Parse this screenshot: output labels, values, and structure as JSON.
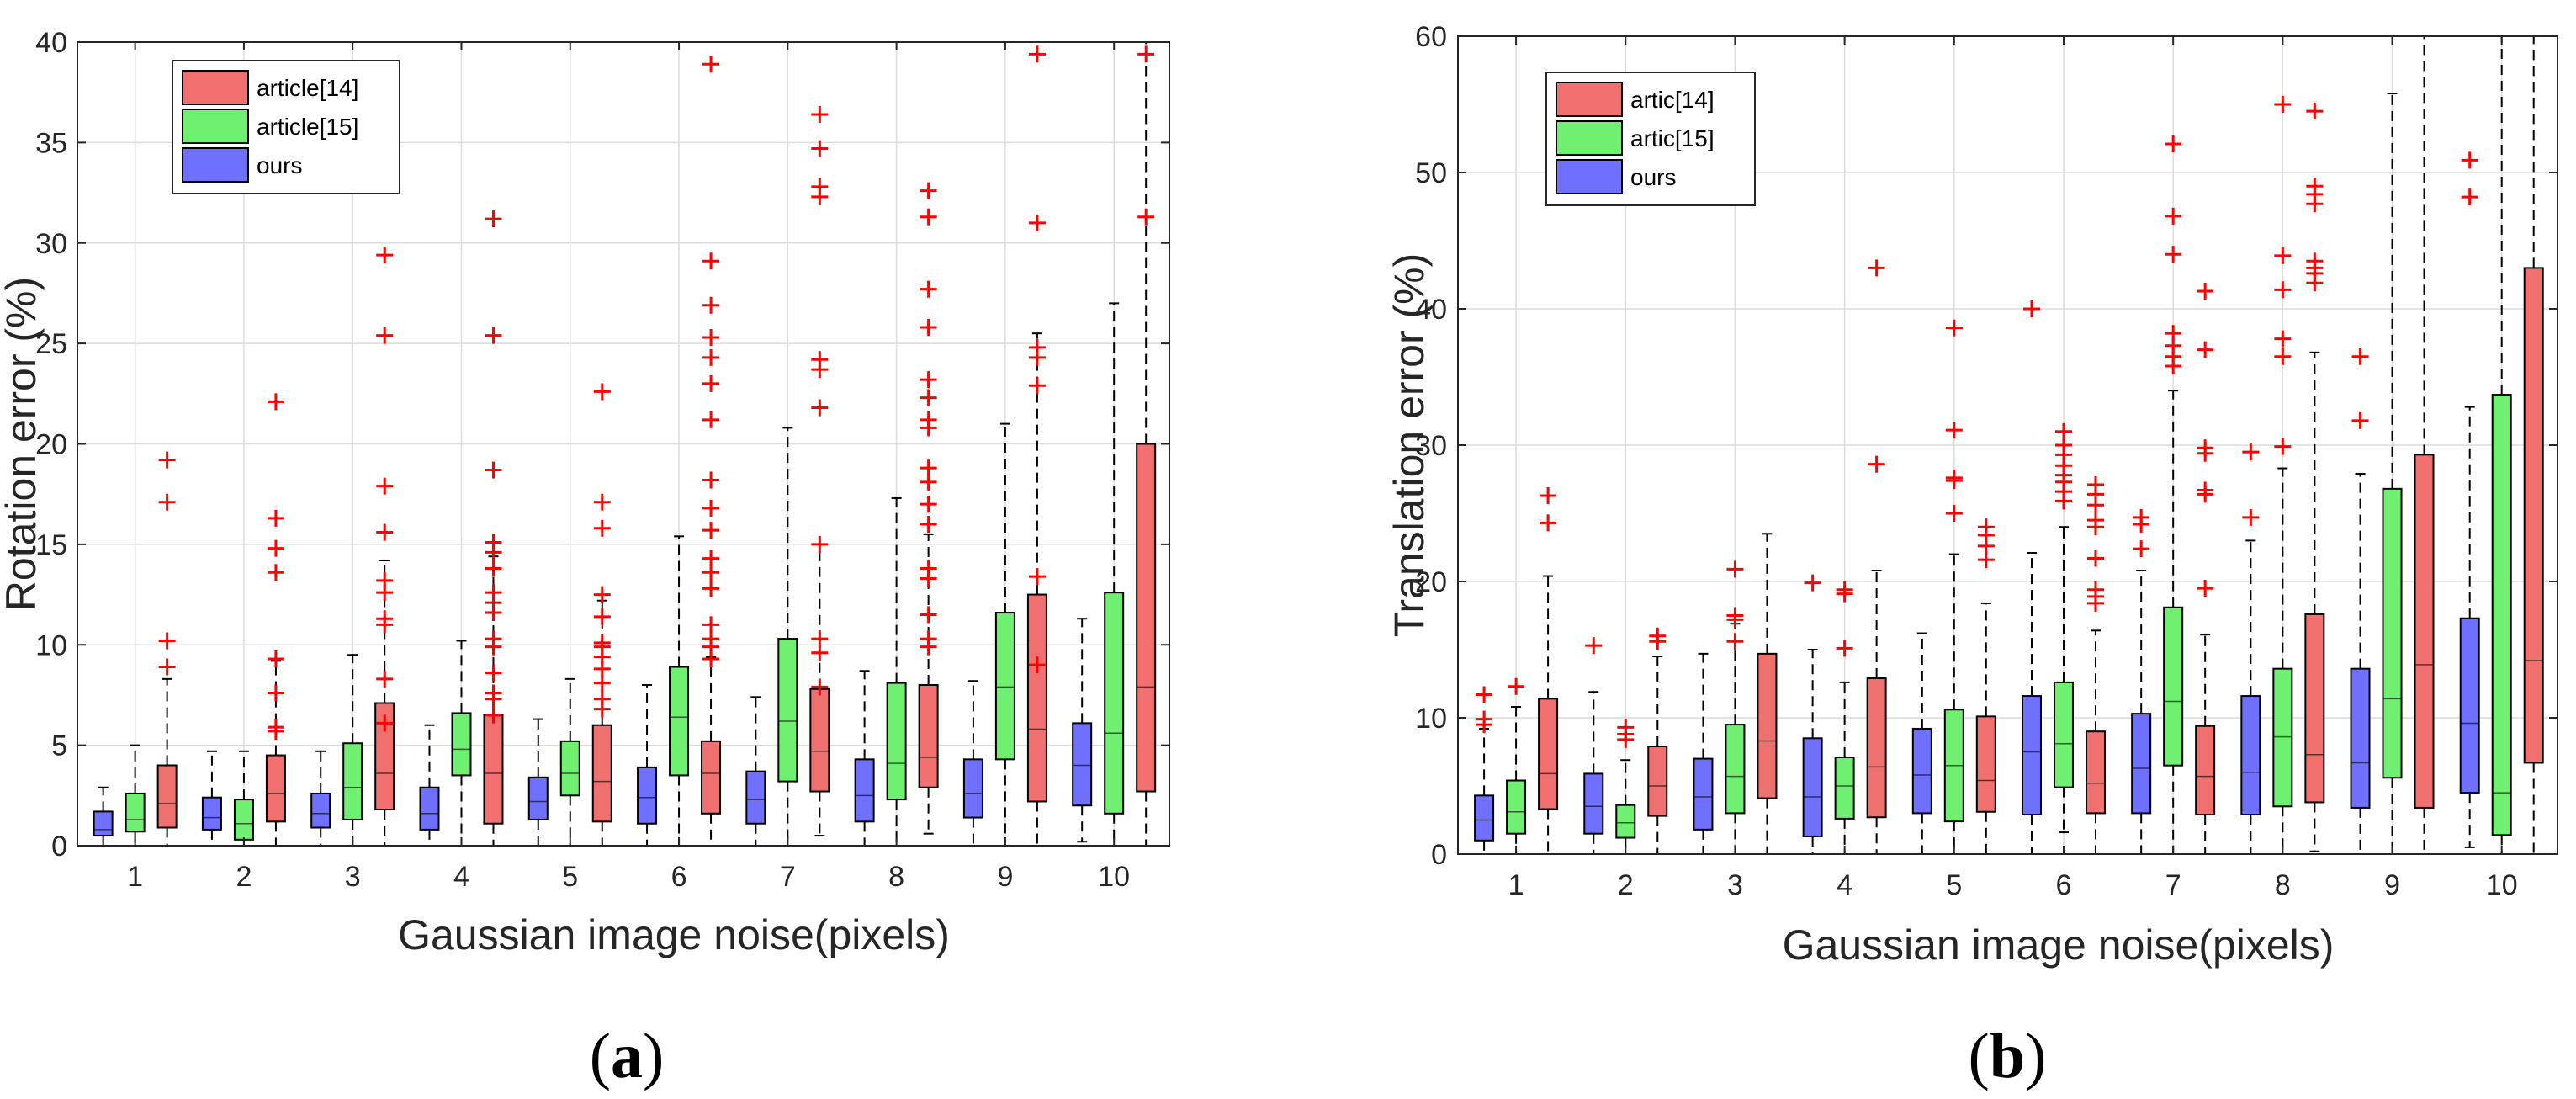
{
  "chart_data": [
    {
      "type": "box",
      "panel_label": "a",
      "xlabel": "Gaussian image noise(pixels)",
      "ylabel": "Rotation error (%)",
      "ylim": [
        0,
        40
      ],
      "yticks": [
        0,
        5,
        10,
        15,
        20,
        25,
        30,
        35,
        40
      ],
      "categories": [
        "1",
        "2",
        "3",
        "4",
        "5",
        "6",
        "7",
        "8",
        "9",
        "10"
      ],
      "grid": true,
      "legend_position": "top-left",
      "series": [
        {
          "name": "ours",
          "color": "#7070ff",
          "boxes": [
            {
              "whisker_low": 0,
              "q1": 0.5,
              "median": 0.8,
              "q3": 1.7,
              "whisker_high": 2.9,
              "outliers": []
            },
            {
              "whisker_low": 0,
              "q1": 0.8,
              "median": 1.4,
              "q3": 2.4,
              "whisker_high": 4.7,
              "outliers": []
            },
            {
              "whisker_low": 0,
              "q1": 0.9,
              "median": 1.6,
              "q3": 2.6,
              "whisker_high": 4.7,
              "outliers": []
            },
            {
              "whisker_low": 0,
              "q1": 0.8,
              "median": 1.6,
              "q3": 2.9,
              "whisker_high": 6.0,
              "outliers": []
            },
            {
              "whisker_low": 0,
              "q1": 1.3,
              "median": 2.2,
              "q3": 3.4,
              "whisker_high": 6.3,
              "outliers": []
            },
            {
              "whisker_low": 0,
              "q1": 1.1,
              "median": 2.4,
              "q3": 3.9,
              "whisker_high": 8.0,
              "outliers": []
            },
            {
              "whisker_low": 0,
              "q1": 1.1,
              "median": 2.3,
              "q3": 3.7,
              "whisker_high": 7.4,
              "outliers": []
            },
            {
              "whisker_low": 0,
              "q1": 1.2,
              "median": 2.5,
              "q3": 4.3,
              "whisker_high": 8.7,
              "outliers": []
            },
            {
              "whisker_low": 0,
              "q1": 1.4,
              "median": 2.6,
              "q3": 4.3,
              "whisker_high": 8.2,
              "outliers": []
            },
            {
              "whisker_low": 0.2,
              "q1": 2.0,
              "median": 4.0,
              "q3": 6.1,
              "whisker_high": 11.3,
              "outliers": []
            }
          ]
        },
        {
          "name": "article[15]",
          "color": "#70f070",
          "boxes": [
            {
              "whisker_low": 0,
              "q1": 0.7,
              "median": 1.3,
              "q3": 2.6,
              "whisker_high": 5.0,
              "outliers": []
            },
            {
              "whisker_low": 0,
              "q1": 0.3,
              "median": 1.1,
              "q3": 2.3,
              "whisker_high": 4.7,
              "outliers": []
            },
            {
              "whisker_low": 0,
              "q1": 1.3,
              "median": 2.9,
              "q3": 5.1,
              "whisker_high": 9.5,
              "outliers": []
            },
            {
              "whisker_low": 0,
              "q1": 3.5,
              "median": 4.8,
              "q3": 6.6,
              "whisker_high": 10.2,
              "outliers": []
            },
            {
              "whisker_low": 0,
              "q1": 2.5,
              "median": 3.6,
              "q3": 5.2,
              "whisker_high": 8.3,
              "outliers": []
            },
            {
              "whisker_low": 0,
              "q1": 3.5,
              "median": 6.4,
              "q3": 8.9,
              "whisker_high": 15.4,
              "outliers": []
            },
            {
              "whisker_low": 0,
              "q1": 3.2,
              "median": 6.2,
              "q3": 10.3,
              "whisker_high": 20.8,
              "outliers": []
            },
            {
              "whisker_low": 0,
              "q1": 2.3,
              "median": 4.1,
              "q3": 8.1,
              "whisker_high": 17.3,
              "outliers": []
            },
            {
              "whisker_low": 0,
              "q1": 4.3,
              "median": 7.9,
              "q3": 11.6,
              "whisker_high": 21.0,
              "outliers": []
            },
            {
              "whisker_low": 0,
              "q1": 1.6,
              "median": 5.6,
              "q3": 12.6,
              "whisker_high": 27.0,
              "outliers": []
            }
          ]
        },
        {
          "name": "article[14]",
          "color": "#f07070",
          "boxes": [
            {
              "whisker_low": 0,
              "q1": 0.9,
              "median": 2.1,
              "q3": 4.0,
              "whisker_high": 8.3,
              "outliers": [
                8.9,
                10.2,
                17.1,
                19.2
              ]
            },
            {
              "whisker_low": 0,
              "q1": 1.2,
              "median": 2.6,
              "q3": 4.5,
              "whisker_high": 9.2,
              "outliers": [
                5.7,
                5.9,
                7.6,
                9.3,
                13.6,
                14.8,
                16.3,
                22.1
              ]
            },
            {
              "whisker_low": 0,
              "q1": 1.8,
              "median": 3.6,
              "q3": 7.1,
              "whisker_high": 14.2,
              "outliers": [
                6.1,
                8.3,
                11.0,
                11.3,
                12.6,
                13.2,
                15.6,
                17.9,
                25.4,
                29.4
              ]
            },
            {
              "whisker_low": 0,
              "q1": 1.1,
              "median": 3.6,
              "q3": 6.5,
              "whisker_high": 14.4,
              "outliers": [
                6.5,
                7.3,
                7.6,
                8.6,
                9.9,
                10.3,
                11.6,
                12.1,
                12.6,
                13.8,
                15.1,
                14.6,
                18.7,
                25.4,
                31.2
              ]
            },
            {
              "whisker_low": 0,
              "q1": 1.2,
              "median": 3.2,
              "q3": 6.0,
              "whisker_high": 12.2,
              "outliers": [
                6.8,
                7.3,
                8.1,
                8.8,
                9.4,
                9.9,
                10.1,
                11.4,
                12.5,
                15.8,
                17.1,
                22.6
              ]
            },
            {
              "whisker_low": 0,
              "q1": 1.6,
              "median": 3.6,
              "q3": 5.2,
              "whisker_high": 9.4,
              "outliers": [
                9.3,
                9.9,
                10.3,
                11.0,
                12.8,
                13.6,
                14.3,
                15.7,
                16.8,
                18.2,
                21.2,
                23.0,
                24.3,
                25.3,
                26.9,
                29.1,
                38.9
              ]
            },
            {
              "whisker_low": 0.5,
              "q1": 2.7,
              "median": 4.7,
              "q3": 7.8,
              "whisker_high": 15.0,
              "outliers": [
                7.9,
                9.6,
                10.3,
                15.0,
                21.8,
                23.7,
                24.2,
                32.3,
                32.8,
                34.7,
                36.4
              ]
            },
            {
              "whisker_low": 0.6,
              "q1": 2.9,
              "median": 4.4,
              "q3": 8.0,
              "whisker_high": 15.5,
              "outliers": [
                9.9,
                10.3,
                11.5,
                13.3,
                13.8,
                16.0,
                17.0,
                18.1,
                18.8,
                20.8,
                21.2,
                22.3,
                23.2,
                25.8,
                27.7,
                31.3,
                32.6
              ]
            },
            {
              "whisker_low": 0,
              "q1": 2.2,
              "median": 5.8,
              "q3": 12.5,
              "whisker_high": 25.5,
              "outliers": [
                9.0,
                13.4,
                22.9,
                24.3,
                24.8,
                31.0,
                39.4
              ]
            },
            {
              "whisker_low": 0,
              "q1": 2.7,
              "median": 7.9,
              "q3": 20.0,
              "whisker_high": 40,
              "outliers": [
                31.3,
                39.4
              ]
            }
          ]
        }
      ],
      "legend": [
        "article[14]",
        "article[15]",
        "ours"
      ]
    },
    {
      "type": "box",
      "panel_label": "b",
      "xlabel": "Gaussian image noise(pixels)",
      "ylabel": "Translation error (%)",
      "ylim": [
        0,
        60
      ],
      "yticks": [
        0,
        10,
        20,
        30,
        40,
        50,
        60
      ],
      "categories": [
        "1",
        "2",
        "3",
        "4",
        "5",
        "6",
        "7",
        "8",
        "9",
        "10"
      ],
      "grid": true,
      "legend_position": "top-left",
      "series": [
        {
          "name": "ours",
          "color": "#7070ff",
          "boxes": [
            {
              "whisker_low": 0,
              "q1": 1.0,
              "median": 2.5,
              "q3": 4.3,
              "whisker_high": 9.2,
              "outliers": [
                9.5,
                9.9,
                11.7
              ]
            },
            {
              "whisker_low": 0,
              "q1": 1.5,
              "median": 3.5,
              "q3": 5.9,
              "whisker_high": 11.9,
              "outliers": [
                15.3
              ]
            },
            {
              "whisker_low": 0,
              "q1": 1.8,
              "median": 4.2,
              "q3": 7.0,
              "whisker_high": 14.7,
              "outliers": []
            },
            {
              "whisker_low": 0,
              "q1": 1.3,
              "median": 4.2,
              "q3": 8.5,
              "whisker_high": 15.0,
              "outliers": [
                19.9
              ]
            },
            {
              "whisker_low": 0,
              "q1": 3.0,
              "median": 5.8,
              "q3": 9.2,
              "whisker_high": 16.2,
              "outliers": []
            },
            {
              "whisker_low": 0,
              "q1": 2.9,
              "median": 7.5,
              "q3": 11.6,
              "whisker_high": 22.1,
              "outliers": [
                40.0
              ]
            },
            {
              "whisker_low": 0,
              "q1": 3.0,
              "median": 6.3,
              "q3": 10.3,
              "whisker_high": 20.8,
              "outliers": [
                22.4,
                24.2,
                24.7
              ]
            },
            {
              "whisker_low": 0,
              "q1": 2.9,
              "median": 6.0,
              "q3": 11.6,
              "whisker_high": 23.0,
              "outliers": [
                24.7,
                29.5
              ]
            },
            {
              "whisker_low": 0,
              "q1": 3.4,
              "median": 6.7,
              "q3": 13.6,
              "whisker_high": 27.9,
              "outliers": [
                31.8,
                36.5
              ]
            },
            {
              "whisker_low": 0.5,
              "q1": 4.5,
              "median": 9.6,
              "q3": 17.3,
              "whisker_high": 32.8,
              "outliers": [
                48.2,
                50.9
              ]
            }
          ]
        },
        {
          "name": "artic[15]",
          "color": "#70f070",
          "boxes": [
            {
              "whisker_low": 0,
              "q1": 1.5,
              "median": 3.1,
              "q3": 5.4,
              "whisker_high": 10.8,
              "outliers": [
                12.3
              ]
            },
            {
              "whisker_low": 0,
              "q1": 1.2,
              "median": 2.3,
              "q3": 3.6,
              "whisker_high": 6.9,
              "outliers": [
                8.4,
                8.8,
                9.3
              ]
            },
            {
              "whisker_low": 0,
              "q1": 3.0,
              "median": 5.7,
              "q3": 9.5,
              "whisker_high": 16.9,
              "outliers": [
                15.6,
                17.2,
                17.5,
                20.9
              ]
            },
            {
              "whisker_low": 0,
              "q1": 2.6,
              "median": 5.0,
              "q3": 7.1,
              "whisker_high": 12.6,
              "outliers": [
                15.1,
                19.1,
                19.4
              ]
            },
            {
              "whisker_low": 0,
              "q1": 2.4,
              "median": 6.5,
              "q3": 10.6,
              "whisker_high": 22.0,
              "outliers": [
                25.0,
                27.4,
                27.6,
                31.1,
                38.6
              ]
            },
            {
              "whisker_low": 1.6,
              "q1": 4.9,
              "median": 8.1,
              "q3": 12.6,
              "whisker_high": 24.0,
              "outliers": [
                25.9,
                26.6,
                27.3,
                27.8,
                28.5,
                29.3,
                30.0,
                31.0
              ]
            },
            {
              "whisker_low": 0,
              "q1": 6.5,
              "median": 11.2,
              "q3": 18.1,
              "whisker_high": 34.0,
              "outliers": [
                35.8,
                36.5,
                37.3,
                38.2,
                44.0,
                46.8,
                52.1
              ]
            },
            {
              "whisker_low": 0,
              "q1": 3.5,
              "median": 8.6,
              "q3": 13.6,
              "whisker_high": 28.3,
              "outliers": [
                29.9,
                36.5,
                37.8,
                41.4,
                43.9,
                55.0
              ]
            },
            {
              "whisker_low": 0,
              "q1": 5.6,
              "median": 11.4,
              "q3": 26.8,
              "whisker_high": 55.8,
              "outliers": []
            },
            {
              "whisker_low": 0,
              "q1": 1.4,
              "median": 4.5,
              "q3": 33.7,
              "whisker_high": 60,
              "outliers": []
            }
          ]
        },
        {
          "name": "artic[14]",
          "color": "#f07070",
          "boxes": [
            {
              "whisker_low": 0,
              "q1": 3.3,
              "median": 5.9,
              "q3": 11.4,
              "whisker_high": 20.4,
              "outliers": [
                24.3,
                26.3
              ]
            },
            {
              "whisker_low": 0,
              "q1": 2.8,
              "median": 5.0,
              "q3": 7.9,
              "whisker_high": 14.5,
              "outliers": [
                15.6,
                16.0
              ]
            },
            {
              "whisker_low": 0,
              "q1": 4.1,
              "median": 8.3,
              "q3": 14.7,
              "whisker_high": 23.5,
              "outliers": []
            },
            {
              "whisker_low": 0,
              "q1": 2.7,
              "median": 6.4,
              "q3": 12.9,
              "whisker_high": 20.8,
              "outliers": [
                28.6,
                43.0
              ]
            },
            {
              "whisker_low": 0,
              "q1": 3.1,
              "median": 5.4,
              "q3": 10.1,
              "whisker_high": 18.4,
              "outliers": [
                21.6,
                22.6,
                23.4,
                24.0
              ]
            },
            {
              "whisker_low": 0,
              "q1": 3.0,
              "median": 5.2,
              "q3": 9.0,
              "whisker_high": 16.4,
              "outliers": [
                18.4,
                18.9,
                19.4,
                21.7,
                24.0,
                24.5,
                25.6,
                26.4,
                27.1
              ]
            },
            {
              "whisker_low": 0,
              "q1": 2.9,
              "median": 5.7,
              "q3": 9.4,
              "whisker_high": 16.1,
              "outliers": [
                19.5,
                26.4,
                26.7,
                29.4,
                29.8,
                37.0,
                41.3
              ]
            },
            {
              "whisker_low": 0.2,
              "q1": 3.8,
              "median": 7.3,
              "q3": 17.6,
              "whisker_high": 36.8,
              "outliers": [
                41.9,
                42.6,
                43.0,
                43.5,
                47.7,
                48.4,
                49.0,
                54.5
              ]
            },
            {
              "whisker_low": 0,
              "q1": 3.4,
              "median": 13.9,
              "q3": 29.3,
              "whisker_high": 60,
              "outliers": []
            },
            {
              "whisker_low": 0,
              "q1": 6.7,
              "median": 14.2,
              "q3": 43.0,
              "whisker_high": 60,
              "outliers": []
            }
          ]
        }
      ],
      "legend": [
        "artic[14]",
        "artic[15]",
        "ours"
      ]
    }
  ],
  "panels": {
    "a": {
      "label_open": "(",
      "label": "a",
      "label_close": ")"
    },
    "b": {
      "label_open": "(",
      "label": "b",
      "label_close": ")"
    }
  }
}
